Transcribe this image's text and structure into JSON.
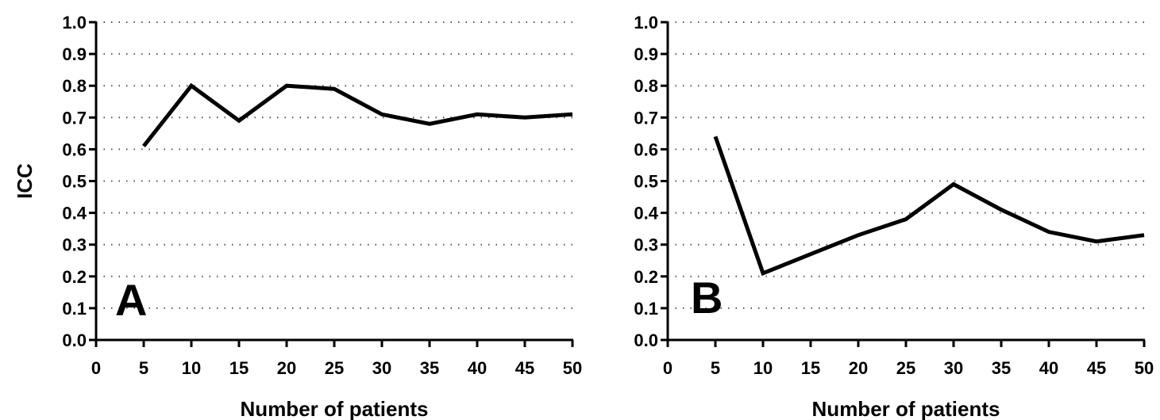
{
  "chart_data": [
    {
      "type": "line",
      "panel_label": "A",
      "xlabel": "Number of patients",
      "ylabel": "ICC",
      "xlim": [
        0,
        50
      ],
      "ylim": [
        0.0,
        1.0
      ],
      "x_ticks": [
        "0",
        "5",
        "10",
        "15",
        "20",
        "25",
        "30",
        "35",
        "40",
        "45",
        "50"
      ],
      "y_ticks": [
        "0.0",
        "0.1",
        "0.2",
        "0.3",
        "0.4",
        "0.5",
        "0.6",
        "0.7",
        "0.8",
        "0.9",
        "1.0"
      ],
      "grid": "horizontal dotted",
      "x": [
        5,
        10,
        15,
        20,
        25,
        30,
        35,
        40,
        45,
        50
      ],
      "y": [
        0.61,
        0.8,
        0.69,
        0.8,
        0.79,
        0.71,
        0.68,
        0.71,
        0.7,
        0.71
      ],
      "line_color": "#000000"
    },
    {
      "type": "line",
      "panel_label": "B",
      "xlabel": "Number of patients",
      "ylabel": "",
      "xlim": [
        0,
        50
      ],
      "ylim": [
        0.0,
        1.0
      ],
      "x_ticks": [
        "0",
        "5",
        "10",
        "15",
        "20",
        "25",
        "30",
        "35",
        "40",
        "45",
        "50"
      ],
      "y_ticks": [
        "0.0",
        "0.1",
        "0.2",
        "0.3",
        "0.4",
        "0.5",
        "0.6",
        "0.7",
        "0.8",
        "0.9",
        "1.0"
      ],
      "grid": "horizontal dotted",
      "x": [
        5,
        10,
        15,
        20,
        25,
        30,
        35,
        40,
        45,
        50
      ],
      "y": [
        0.64,
        0.21,
        0.27,
        0.33,
        0.38,
        0.49,
        0.41,
        0.34,
        0.31,
        0.33
      ],
      "line_color": "#000000"
    }
  ]
}
